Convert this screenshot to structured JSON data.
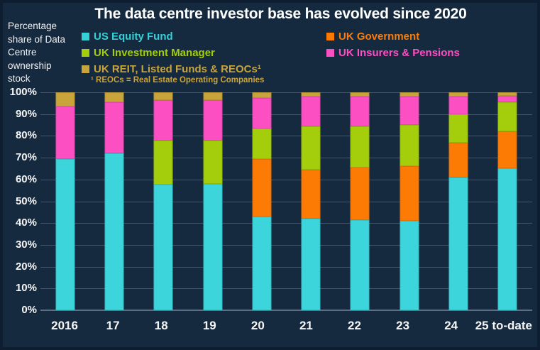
{
  "header": {
    "title": "The data centre investor base has evolved since 2020",
    "y_axis_title": "Percentage share of Data Centre ownership stock"
  },
  "legend": {
    "columns": [
      {
        "items": [
          {
            "label": "US Equity Fund",
            "color": "#35CFD8"
          },
          {
            "label": "UK Investment Manager",
            "color": "#A4CE0C"
          },
          {
            "label": "UK REIT, Listed Funds & REOCs¹",
            "color": "#C9A43B"
          }
        ]
      },
      {
        "items": [
          {
            "label": "UK Government",
            "color": "#FC7B05"
          },
          {
            "label": "UK Insurers & Pensions",
            "color": "#FB4FC2"
          }
        ]
      }
    ],
    "footnote": "¹ REOCs = Real Estate Operating Companies"
  },
  "chart_data": {
    "type": "bar",
    "stacked": true,
    "title": "The data centre investor base has evolved since 2020",
    "ylabel": "Percentage share of Data Centre ownership stock",
    "xlabel": "",
    "ylim": [
      0,
      100
    ],
    "grid": true,
    "legend_position": "top",
    "categories": [
      "2016",
      "17",
      "18",
      "19",
      "20",
      "21",
      "22",
      "23",
      "24",
      "25 to-date"
    ],
    "y_ticks": [
      "100%",
      "90%",
      "80%",
      "70%",
      "60%",
      "50%",
      "40%",
      "30%",
      "20%",
      "10%",
      "0%"
    ],
    "series": [
      {
        "name": "US Equity Fund",
        "color": "#3BD5DB",
        "values": [
          69.5,
          72,
          57.5,
          58,
          43,
          42,
          41.5,
          41,
          61,
          65
        ]
      },
      {
        "name": "UK Government",
        "color": "#FC7B05",
        "values": [
          0,
          0,
          0,
          0,
          26.5,
          22.5,
          24,
          25,
          16,
          17
        ]
      },
      {
        "name": "UK Investment Manager",
        "color": "#A4CE0C",
        "values": [
          0,
          0,
          20.5,
          20,
          14,
          20,
          19,
          19,
          13,
          13.5
        ]
      },
      {
        "name": "UK Insurers & Pensions",
        "color": "#FB4FC2",
        "values": [
          24,
          23.5,
          18.5,
          18.5,
          14,
          13.5,
          13.5,
          13,
          8,
          3
        ]
      },
      {
        "name": "UK REIT, Listed Funds & REOCs¹",
        "color": "#C9A43B",
        "values": [
          6.5,
          4.5,
          3.5,
          3.5,
          2.5,
          2,
          2,
          2,
          2,
          1.5
        ]
      }
    ]
  },
  "colors": {
    "background": "#15293F",
    "border": "#0E1D30",
    "gridline": "#44546B",
    "axis_line": "#5C6D85",
    "title_text": "#FFFFFF",
    "axis_text": "#F5F5F5"
  }
}
